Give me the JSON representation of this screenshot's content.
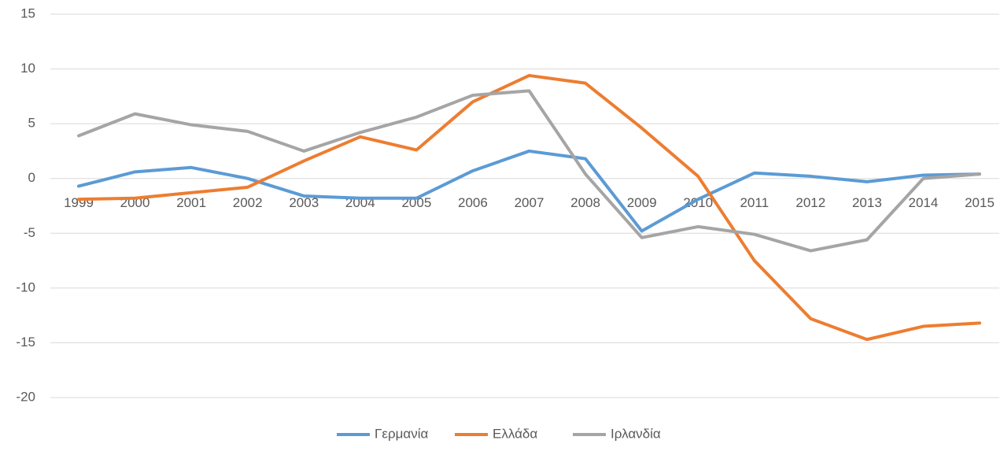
{
  "chart_data": {
    "type": "line",
    "categories": [
      "1999",
      "2000",
      "2001",
      "2002",
      "2003",
      "2004",
      "2005",
      "2006",
      "2007",
      "2008",
      "2009",
      "2010",
      "2011",
      "2012",
      "2013",
      "2014",
      "2015"
    ],
    "series": [
      {
        "name": "Γερμανία",
        "color": "#5b9bd5",
        "values": [
          -0.7,
          0.6,
          1.0,
          0.0,
          -1.6,
          -1.8,
          -1.8,
          0.7,
          2.5,
          1.8,
          -4.8,
          -1.9,
          0.5,
          0.2,
          -0.3,
          0.3,
          0.4
        ]
      },
      {
        "name": "Ελλάδα",
        "color": "#ed7d31",
        "values": [
          -1.9,
          -1.8,
          -1.3,
          -0.8,
          1.6,
          3.8,
          2.6,
          7.0,
          9.4,
          8.7,
          4.6,
          0.2,
          -7.5,
          -12.8,
          -14.7,
          -13.5,
          -13.2
        ]
      },
      {
        "name": "Ιρλανδία",
        "color": "#a5a5a5",
        "values": [
          3.9,
          5.9,
          4.9,
          4.3,
          2.5,
          4.2,
          5.6,
          7.6,
          8.0,
          0.4,
          -5.4,
          -4.4,
          -5.1,
          -6.6,
          -5.6,
          0.0,
          0.4
        ]
      }
    ],
    "ylim": [
      -20,
      15
    ],
    "yticks": [
      -20,
      -15,
      -10,
      -5,
      0,
      5,
      10,
      15
    ],
    "grid": true,
    "legend": "bottom"
  }
}
